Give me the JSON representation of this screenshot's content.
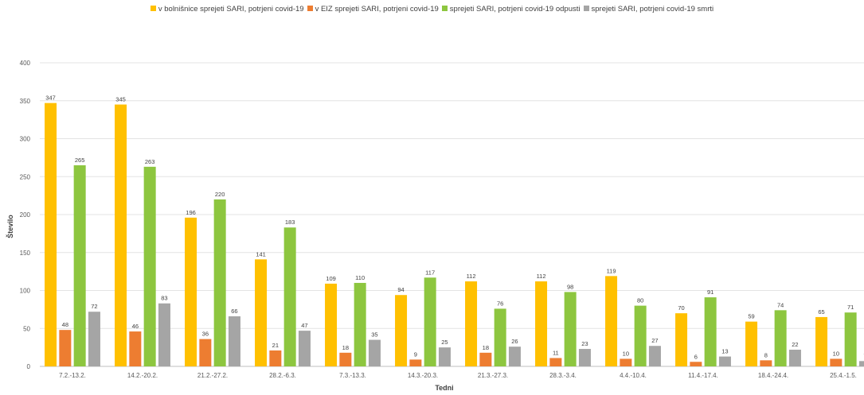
{
  "chart_data": {
    "type": "bar",
    "title": "",
    "xlabel": "Tedni",
    "ylabel": "Število",
    "ylim": [
      0,
      400
    ],
    "yticks": [
      0,
      50,
      100,
      150,
      200,
      250,
      300,
      350,
      400
    ],
    "grid": true,
    "legend_position": "top",
    "categories": [
      "7.2.-13.2.",
      "14.2.-20.2.",
      "21.2.-27.2.",
      "28.2.-6.3.",
      "7.3.-13.3.",
      "14.3.-20.3.",
      "21.3.-27.3.",
      "28.3.-3.4.",
      "4.4.-10.4.",
      "11.4.-17.4.",
      "18.4.-24.4.",
      "25.4.-1.5."
    ],
    "series": [
      {
        "name": "v bolnišnice sprejeti SARI, potrjeni covid-19",
        "color": "#FFC000",
        "values": [
          347,
          345,
          196,
          141,
          109,
          94,
          112,
          112,
          119,
          70,
          59,
          65
        ]
      },
      {
        "name": "v EIZ sprejeti SARI, potrjeni covid-19",
        "color": "#ED7D31",
        "values": [
          48,
          46,
          36,
          21,
          18,
          9,
          18,
          11,
          10,
          6,
          8,
          10
        ]
      },
      {
        "name": "sprejeti SARI, potrjeni covid-19 odpusti",
        "color": "#8DC63F",
        "values": [
          265,
          263,
          220,
          183,
          110,
          117,
          76,
          98,
          80,
          91,
          74,
          71
        ]
      },
      {
        "name": "sprejeti SARI, potrjeni covid-19 smrti",
        "color": "#A5A5A5",
        "values": [
          72,
          83,
          66,
          47,
          35,
          25,
          26,
          23,
          27,
          13,
          22,
          7
        ]
      }
    ]
  }
}
